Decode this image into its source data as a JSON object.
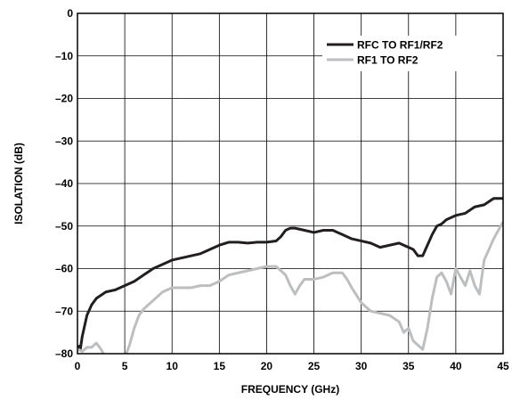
{
  "chart_data": {
    "type": "line",
    "title": "",
    "xlabel": "FREQUENCY (GHz)",
    "ylabel": "ISOLATION (dB)",
    "xlim": [
      0,
      45
    ],
    "ylim": [
      -80,
      0
    ],
    "xticks": [
      "0",
      "5",
      "10",
      "15",
      "20",
      "25",
      "30",
      "35",
      "40",
      "45"
    ],
    "yticks": [
      "0",
      "–10",
      "–20",
      "–30",
      "–40",
      "–50",
      "–60",
      "–70",
      "–80"
    ],
    "grid": true,
    "legend_position": "top-right",
    "series": [
      {
        "name": "RFC TO RF1/RF2",
        "color": "#231f20",
        "x": [
          0.1,
          0.3,
          0.5,
          0.8,
          1.0,
          1.5,
          2.0,
          3.0,
          4.0,
          5.0,
          6.0,
          7.0,
          8.0,
          9.0,
          10.0,
          11.0,
          12.0,
          13.0,
          14.0,
          15.0,
          16.0,
          17.0,
          18.0,
          19.0,
          20.0,
          21.0,
          21.5,
          22.0,
          22.5,
          23.0,
          24.0,
          25.0,
          26.0,
          27.0,
          28.0,
          29.0,
          30.0,
          31.0,
          32.0,
          33.0,
          34.0,
          35.0,
          35.5,
          36.0,
          36.5,
          37.0,
          37.5,
          38.0,
          38.5,
          39.0,
          40.0,
          41.0,
          42.0,
          43.0,
          44.0,
          45.0
        ],
        "y": [
          -78,
          -79,
          -76,
          -73,
          -71,
          -68.5,
          -67,
          -65.5,
          -65,
          -64,
          -63,
          -61.5,
          -60,
          -59,
          -58,
          -57.5,
          -57,
          -56.5,
          -55.5,
          -54.5,
          -53.8,
          -53.8,
          -54,
          -53.8,
          -53.8,
          -53.5,
          -52.5,
          -51,
          -50.5,
          -50.5,
          -51,
          -51.5,
          -51,
          -51,
          -52,
          -53,
          -53.5,
          -54,
          -55,
          -54.5,
          -54,
          -55,
          -55.5,
          -57,
          -57,
          -54.5,
          -52,
          -50,
          -49.5,
          -48.5,
          -47.5,
          -47,
          -45.5,
          -45,
          -43.5,
          -43.5
        ]
      },
      {
        "name": "RF1 TO RF2",
        "color": "#bcbec0",
        "x": [
          0.1,
          0.5,
          1.0,
          1.5,
          2.0,
          2.5,
          3.0,
          4.0,
          5.0,
          5.5,
          6.0,
          6.5,
          7.0,
          8.0,
          9.0,
          10.0,
          11.0,
          12.0,
          13.0,
          14.0,
          15.0,
          16.0,
          17.0,
          18.0,
          19.0,
          20.0,
          21.0,
          22.0,
          22.5,
          23.0,
          23.5,
          24.0,
          25.0,
          26.0,
          27.0,
          28.0,
          28.5,
          29.0,
          30.0,
          31.0,
          32.0,
          33.0,
          34.0,
          34.5,
          35.0,
          35.5,
          36.0,
          36.5,
          37.0,
          37.5,
          38.0,
          38.5,
          39.0,
          39.5,
          40.0,
          40.5,
          41.0,
          41.5,
          42.0,
          42.5,
          43.0,
          44.0,
          45.0
        ],
        "y": [
          -79,
          -79.5,
          -78.5,
          -78.5,
          -77.5,
          -79,
          -81,
          -84,
          -81,
          -78,
          -74,
          -71,
          -69.5,
          -67.5,
          -65.5,
          -64.5,
          -64.5,
          -64.5,
          -64,
          -64,
          -63,
          -61.5,
          -61,
          -60.5,
          -60,
          -59.5,
          -59.5,
          -61.5,
          -64,
          -66,
          -64,
          -62.5,
          -62.5,
          -62,
          -61,
          -61,
          -62.5,
          -64.5,
          -68,
          -70,
          -70.5,
          -71,
          -72.5,
          -75,
          -74,
          -77,
          -78,
          -79,
          -74,
          -67,
          -62,
          -61,
          -63,
          -66,
          -60,
          -62,
          -64,
          -60.5,
          -64,
          -66,
          -58,
          -53,
          -49
        ]
      }
    ]
  }
}
